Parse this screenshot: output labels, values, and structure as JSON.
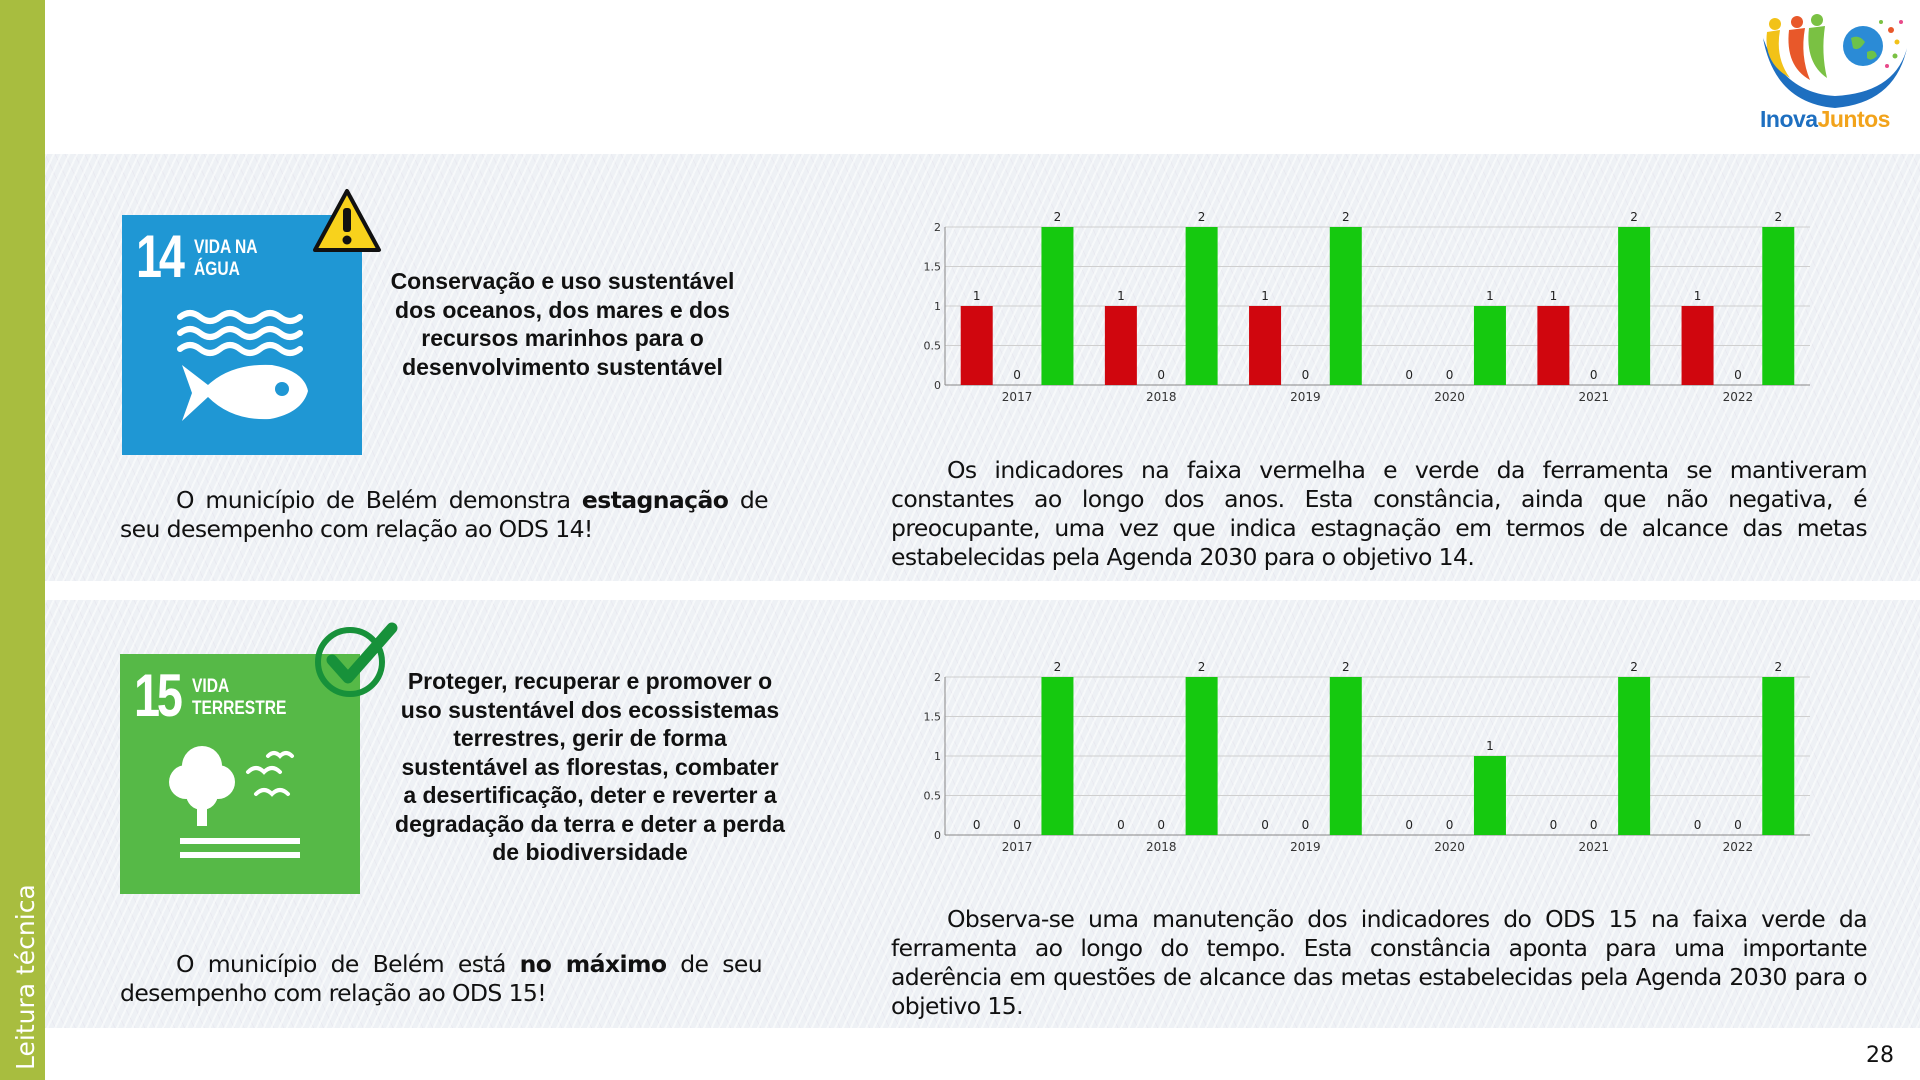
{
  "sidebar": {
    "label": "Leitura técnica",
    "color": "#a8bd3f"
  },
  "logo": {
    "text_part1": "Inova",
    "text_part2": "Juntos"
  },
  "page_number": "28",
  "sections": [
    {
      "sdg_number": "14",
      "sdg_name_line1": "VIDA NA",
      "sdg_name_line2": "ÁGUA",
      "sdg_color": "#1f97d4",
      "status_icon": "warning-icon",
      "goal_text": "Conservação e uso sustentável dos oceanos, dos mares e dos recursos marinhos para o desenvolvimento sustentável",
      "summary_pre": "O município de Belém demonstra ",
      "summary_bold": "estagnação",
      "summary_post": " de seu desempenho com relação ao ODS 14!",
      "paragraph": "Os indicadores na faixa vermelha e verde da ferramenta se mantiveram constantes ao longo dos anos. Esta constância, ainda que não negativa, é preocupante, uma vez que indica estagnação em termos de alcance das metas estabelecidas pela Agenda 2030 para o objetivo 14."
    },
    {
      "sdg_number": "15",
      "sdg_name_line1": "VIDA",
      "sdg_name_line2": "TERRESTRE",
      "sdg_color": "#56b947",
      "status_icon": "checkmark-icon",
      "goal_text": "Proteger, recuperar e promover o uso sustentável dos ecossistemas terrestres, gerir de forma sustentável as florestas, combater a desertificação, deter e reverter a degradação da terra e deter a perda de biodiversidade",
      "summary_pre": "O município de Belém está ",
      "summary_bold": "no máximo",
      "summary_post": " de seu desempenho com relação ao ODS 15!",
      "paragraph": "Observa-se uma manutenção dos indicadores do ODS 15 na faixa verde da ferramenta ao longo do tempo. Esta constância aponta para uma importante aderência em questões de alcance das metas estabelecidas pela Agenda 2030 para o objetivo 15."
    }
  ],
  "chart_data": [
    {
      "type": "bar",
      "categories": [
        "2017",
        "2018",
        "2019",
        "2020",
        "2021",
        "2022"
      ],
      "y_ticks": [
        "0",
        "0.5",
        "1",
        "1.5",
        "2"
      ],
      "ylim": [
        0,
        2
      ],
      "grid": true,
      "series": [
        {
          "color": "#d0060e",
          "values": [
            1,
            1,
            1,
            0,
            1,
            1
          ]
        },
        {
          "color": "#f2e600",
          "values": [
            0,
            0,
            0,
            0,
            0,
            0
          ]
        },
        {
          "color": "#15c90f",
          "values": [
            2,
            2,
            2,
            1,
            2,
            2
          ]
        }
      ]
    },
    {
      "type": "bar",
      "categories": [
        "2017",
        "2018",
        "2019",
        "2020",
        "2021",
        "2022"
      ],
      "y_ticks": [
        "0",
        "0.5",
        "1",
        "1.5",
        "2"
      ],
      "ylim": [
        0,
        2
      ],
      "grid": true,
      "series": [
        {
          "color": "#d0060e",
          "values": [
            0,
            0,
            0,
            0,
            0,
            0
          ]
        },
        {
          "color": "#f2e600",
          "values": [
            0,
            0,
            0,
            0,
            0,
            0
          ]
        },
        {
          "color": "#15c90f",
          "values": [
            2,
            2,
            2,
            1,
            2,
            2
          ]
        }
      ]
    }
  ]
}
